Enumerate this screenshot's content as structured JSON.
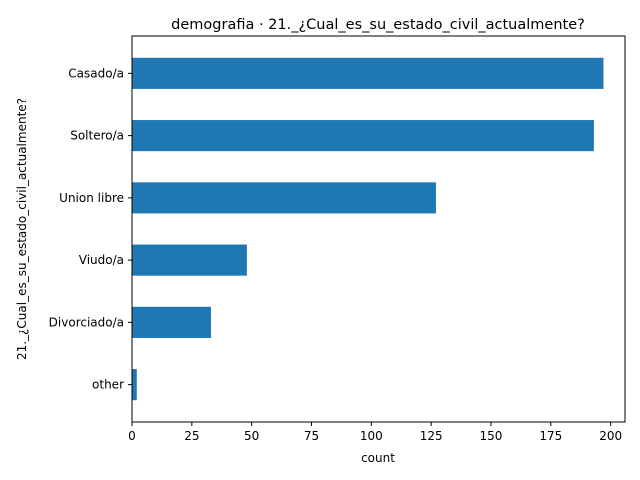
{
  "chart_data": {
    "type": "bar",
    "orientation": "horizontal",
    "title": "demografia · 21._¿Cual_es_su_estado_civil_actualmente?",
    "xlabel": "count",
    "ylabel": "21._¿Cual_es_su_estado_civil_actualmente?",
    "categories": [
      "Casado/a",
      "Soltero/a",
      "Union libre",
      "Viudo/a",
      "Divorciado/a",
      "other"
    ],
    "values": [
      197,
      193,
      127,
      48,
      33,
      2
    ],
    "xlim": [
      0,
      206
    ],
    "xticks": [
      0,
      25,
      50,
      75,
      100,
      125,
      150,
      175,
      200
    ],
    "grid": false,
    "bar_color": "#1f77b4"
  }
}
